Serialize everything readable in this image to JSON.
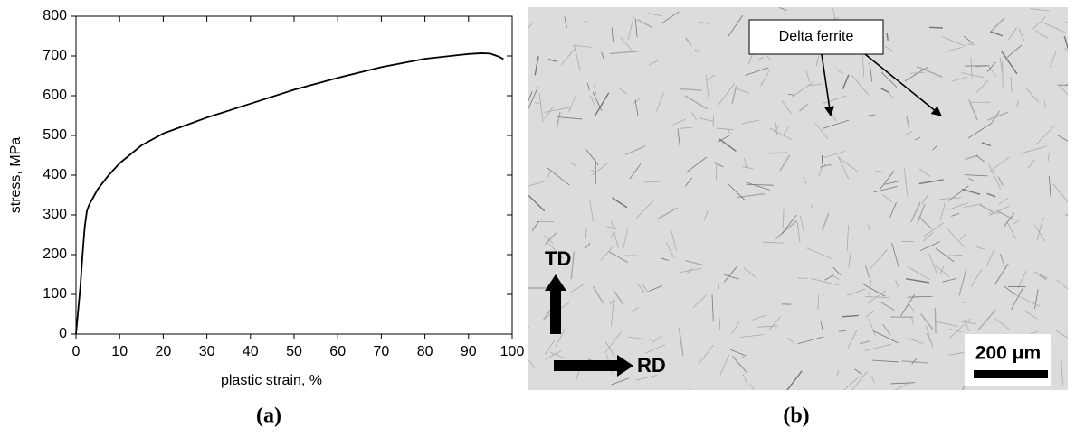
{
  "chart_data": {
    "type": "line",
    "xlabel": "plastic strain, %",
    "ylabel": "stress, MPa",
    "xlim": [
      0,
      100
    ],
    "ylim": [
      0,
      800
    ],
    "xticks": [
      0,
      10,
      20,
      30,
      40,
      50,
      60,
      70,
      80,
      90,
      100
    ],
    "yticks": [
      0,
      100,
      200,
      300,
      400,
      500,
      600,
      700,
      800
    ],
    "grid": false,
    "x": [
      0,
      0.5,
      1,
      1.5,
      2,
      2.5,
      3,
      4,
      5,
      7.5,
      10,
      15,
      20,
      25,
      30,
      40,
      50,
      60,
      70,
      80,
      90,
      93,
      95,
      97,
      98
    ],
    "series": [
      {
        "color": "#000000",
        "values": [
          0,
          60,
          120,
          200,
          270,
          310,
          325,
          345,
          365,
          400,
          430,
          475,
          505,
          525,
          545,
          580,
          615,
          645,
          672,
          693,
          705,
          707,
          706,
          698,
          692
        ]
      }
    ]
  },
  "micrograph": {
    "annotation": "Delta ferrite",
    "direction_up": "TD",
    "direction_right": "RD",
    "scale_bar": "200 μm"
  },
  "captions": [
    "(a)",
    "(b)"
  ]
}
